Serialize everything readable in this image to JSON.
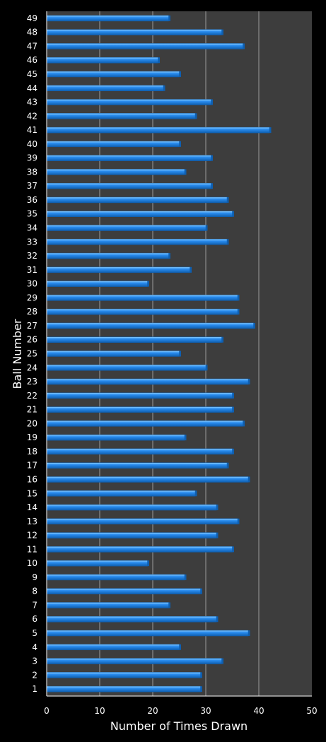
{
  "chart_data": {
    "type": "bar",
    "orientation": "horizontal",
    "xlabel": "Number of Times Drawn",
    "ylabel": "Ball Number",
    "xlim": [
      0,
      50
    ],
    "x_ticks": [
      0,
      10,
      20,
      30,
      40,
      50
    ],
    "grid": "vertical",
    "categories": [
      "1",
      "2",
      "3",
      "4",
      "5",
      "6",
      "7",
      "8",
      "9",
      "10",
      "11",
      "12",
      "13",
      "14",
      "15",
      "16",
      "17",
      "18",
      "19",
      "20",
      "21",
      "22",
      "23",
      "24",
      "25",
      "26",
      "27",
      "28",
      "29",
      "30",
      "31",
      "32",
      "33",
      "34",
      "35",
      "36",
      "37",
      "38",
      "39",
      "40",
      "41",
      "42",
      "43",
      "44",
      "45",
      "46",
      "47",
      "48",
      "49"
    ],
    "values": [
      29,
      29,
      33,
      25,
      38,
      32,
      23,
      29,
      26,
      19,
      35,
      32,
      36,
      32,
      28,
      38,
      34,
      35,
      26,
      37,
      35,
      35,
      38,
      30,
      25,
      33,
      39,
      36,
      36,
      19,
      27,
      23,
      34,
      30,
      35,
      34,
      31,
      26,
      31,
      25,
      42,
      28,
      31,
      22,
      25,
      21,
      37,
      33,
      23
    ],
    "colors": {
      "background": "#000000",
      "plot_area": "#3d3d3d",
      "grid": "#9a9a9a",
      "bar_dark": "#0f5fb0",
      "bar_mid": "#2a8df0",
      "bar_light": "#8fd0ff",
      "text": "#ffffff"
    }
  }
}
